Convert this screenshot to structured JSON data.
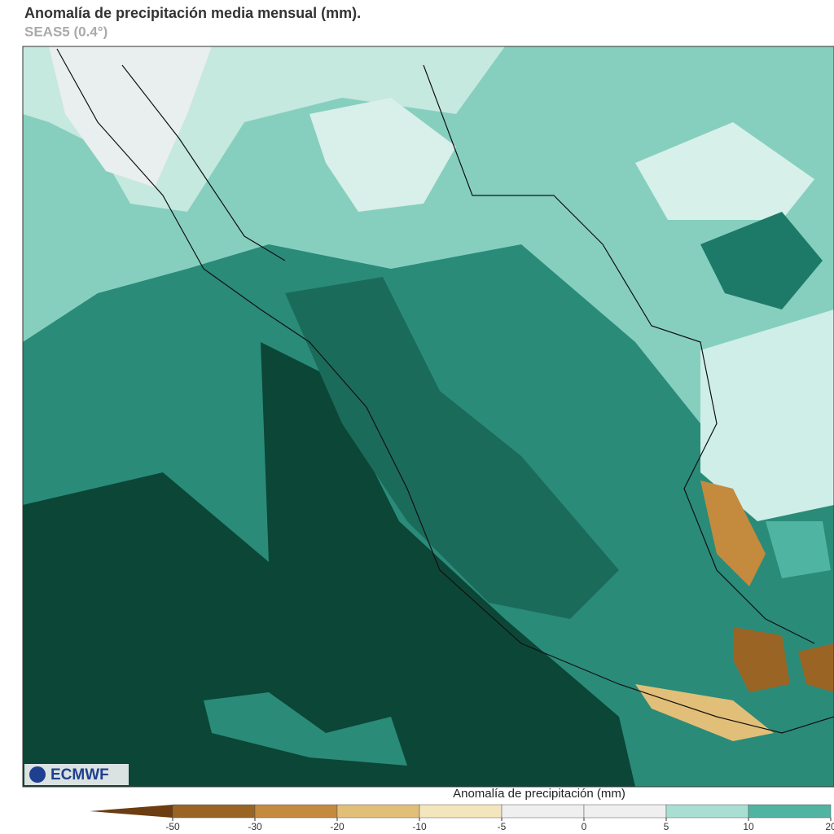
{
  "header": {
    "title": "Anomalía de precipitación media mensual (mm).",
    "subtitle": "SEAS5 (0.4°)"
  },
  "map": {
    "logo": "ECMWF"
  },
  "colorbar": {
    "label": "Anomalía de precipitación (mm)",
    "ticks": [
      -50,
      -30,
      -20,
      -10,
      -5,
      0,
      5,
      10,
      20
    ],
    "colors": [
      "#6b3d10",
      "#9a6424",
      "#c48a3d",
      "#e2bf78",
      "#f3e6bd",
      "#efefef",
      "#efefef",
      "#a9ded2",
      "#4fb5a2"
    ]
  }
}
